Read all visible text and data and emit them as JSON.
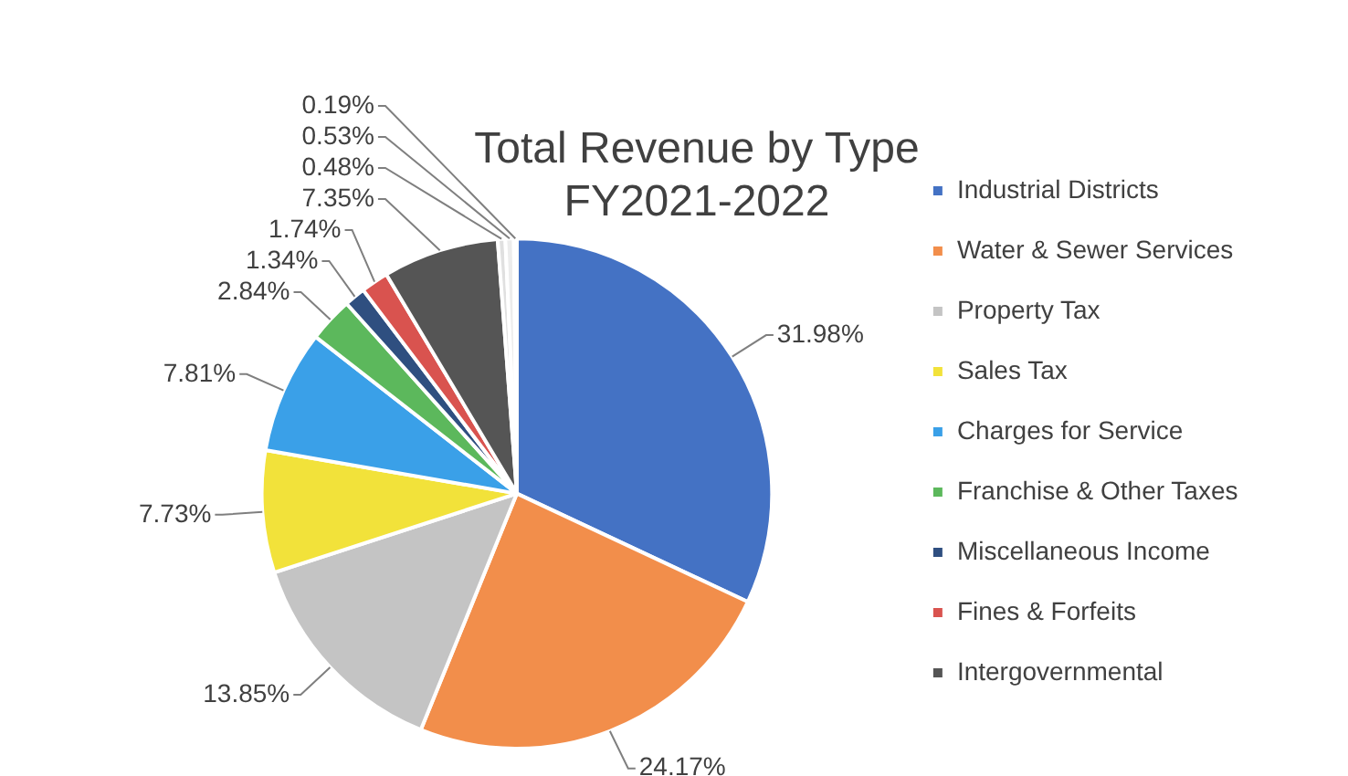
{
  "chart_data": {
    "type": "pie",
    "title": "Total Revenue by Type",
    "subtitle": "FY2021-2022",
    "categories": [
      "Industrial Districts",
      "Water & Sewer Services",
      "Property Tax",
      "Sales Tax",
      "Charges for Service",
      "Franchise & Other Taxes",
      "Miscellaneous Income",
      "Fines & Forfeits",
      "Intergovernmental",
      null,
      null,
      null
    ],
    "values": [
      31.98,
      24.17,
      13.85,
      7.73,
      7.81,
      2.84,
      1.34,
      1.74,
      7.35,
      0.48,
      0.53,
      0.19
    ],
    "value_labels": [
      "31.98%",
      "24.17%",
      "13.85%",
      "7.73%",
      "7.81%",
      "2.84%",
      "1.34%",
      "1.74%",
      "7.35%",
      "0.48%",
      "0.53%",
      "0.19%"
    ],
    "colors": [
      "#4472c4",
      "#f28e4b",
      "#c4c4c4",
      "#f2e23a",
      "#3aa0e8",
      "#5cb85c",
      "#2f4f80",
      "#d9534f",
      "#555555",
      "#e0e0e0",
      "#ececec",
      "#d4d4d4"
    ],
    "legend": "right"
  }
}
